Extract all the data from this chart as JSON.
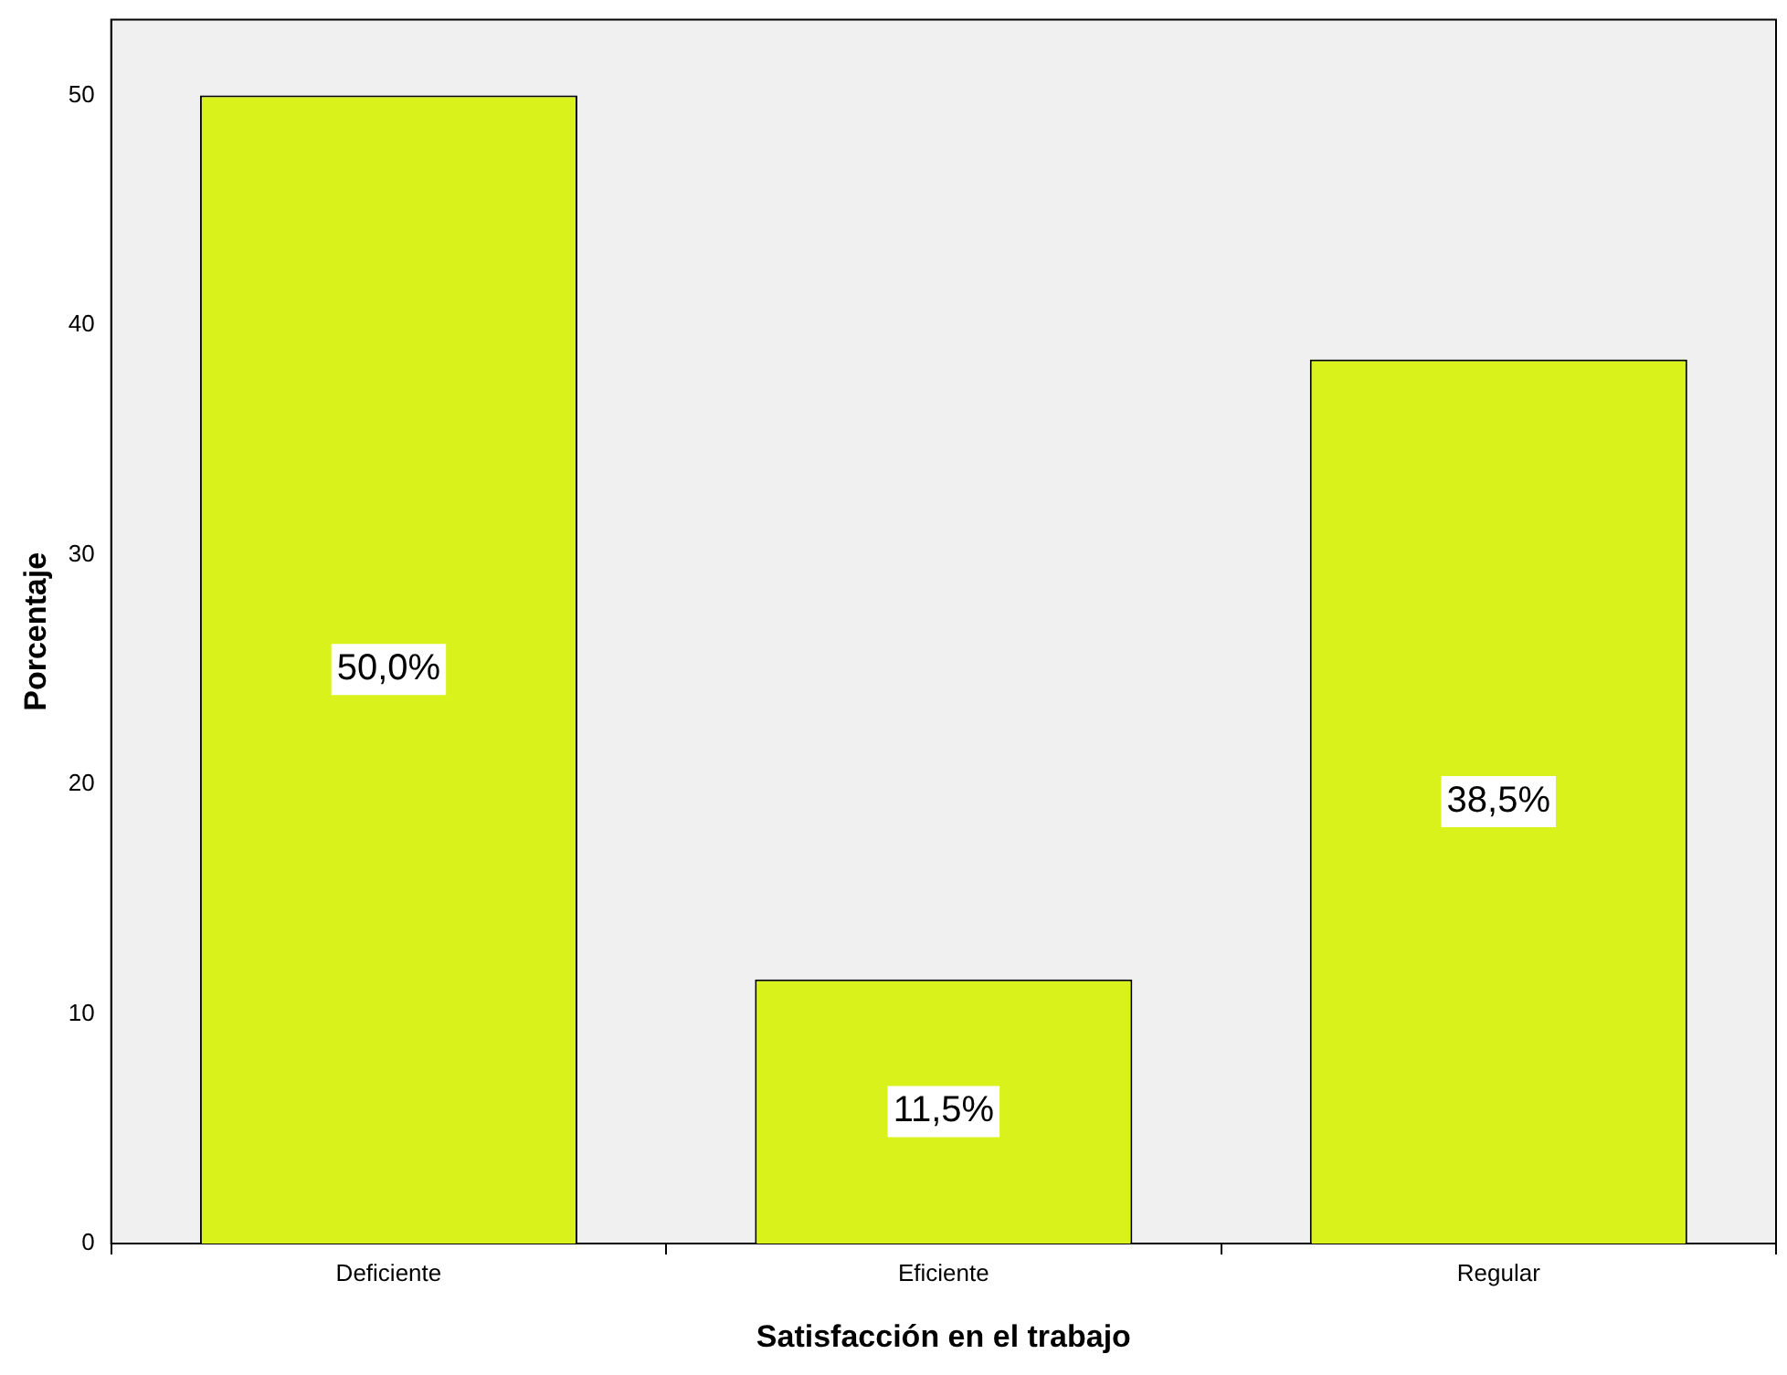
{
  "chart_data": {
    "type": "bar",
    "xlabel": "Satisfacción en el trabajo",
    "ylabel": "Porcentaje",
    "categories": [
      "Deficiente",
      "Eficiente",
      "Regular"
    ],
    "values": [
      50.0,
      11.5,
      38.5
    ],
    "color": "#d9f21c",
    "value_labels": [
      "50,0%",
      "11,5%",
      "38,5%"
    ],
    "ylim": [
      0,
      53.3
    ],
    "yticks": [
      0,
      10,
      20,
      30,
      40,
      50
    ],
    "grid": false,
    "legend": false
  }
}
